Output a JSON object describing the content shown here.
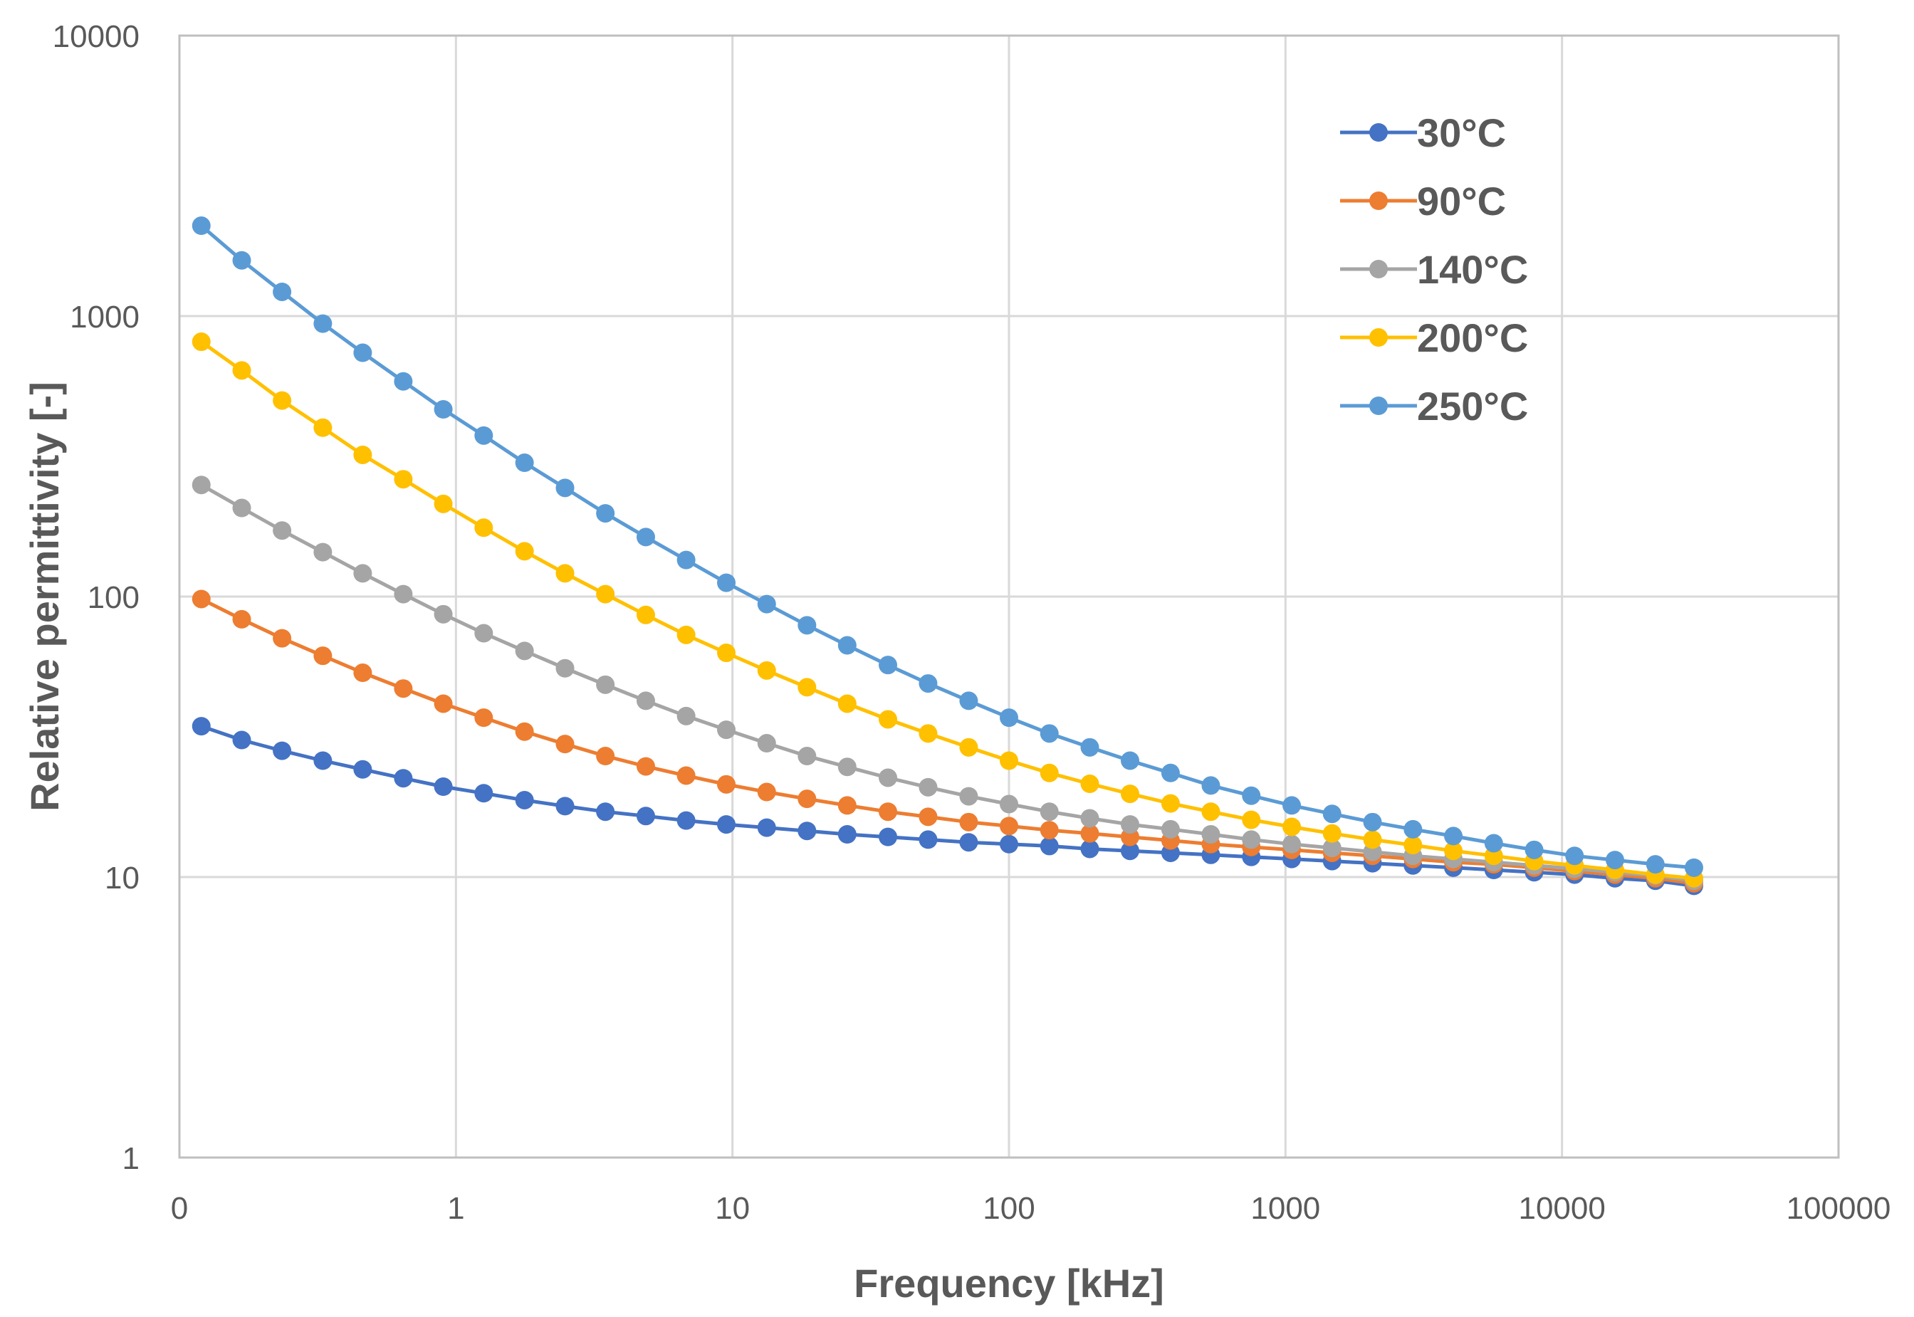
{
  "chart_data": {
    "type": "line",
    "title": "",
    "xlabel": "Frequency [kHz]",
    "ylabel": "Relative permittivity [-]",
    "xscale": "log",
    "yscale": "log",
    "xlim": [
      0.1,
      100000
    ],
    "ylim": [
      1,
      10000
    ],
    "x_tick_labels": [
      "0",
      "1",
      "10",
      "100",
      "1000",
      "10000",
      "100000"
    ],
    "y_tick_labels": [
      "1",
      "10",
      "100",
      "1000",
      "10000"
    ],
    "grid": true,
    "legend_position": "top-right",
    "x": [
      0.12,
      0.168,
      0.235,
      0.33,
      0.46,
      0.645,
      0.9,
      1.26,
      1.77,
      2.48,
      3.47,
      4.86,
      6.8,
      9.5,
      13.3,
      18.6,
      26,
      36.5,
      51,
      71.5,
      100,
      140,
      196,
      274,
      384,
      537,
      752,
      1053,
      1474,
      2064,
      2890,
      4046,
      5664,
      7930,
      11100,
      15540,
      21760,
      30000
    ],
    "series": [
      {
        "name": "30°C",
        "color": "#4472C4",
        "values": [
          34.5,
          30.8,
          28.2,
          26.0,
          24.2,
          22.5,
          21.0,
          19.9,
          18.8,
          17.9,
          17.1,
          16.5,
          15.9,
          15.4,
          15.0,
          14.6,
          14.2,
          13.9,
          13.6,
          13.3,
          13.1,
          12.9,
          12.6,
          12.4,
          12.2,
          12.0,
          11.8,
          11.6,
          11.4,
          11.2,
          11.0,
          10.8,
          10.6,
          10.4,
          10.2,
          9.9,
          9.7,
          9.3
        ]
      },
      {
        "name": "90°C",
        "color": "#ED7D31",
        "values": [
          98,
          83,
          71,
          61.5,
          53.5,
          47,
          41.5,
          37,
          33,
          29.8,
          27,
          24.8,
          23,
          21.4,
          20.1,
          19,
          18,
          17.1,
          16.4,
          15.7,
          15.2,
          14.7,
          14.3,
          13.9,
          13.5,
          13.1,
          12.8,
          12.5,
          12.2,
          11.9,
          11.6,
          11.3,
          11.1,
          10.8,
          10.5,
          10.2,
          9.9,
          9.5
        ]
      },
      {
        "name": "140°C",
        "color": "#A5A5A5",
        "values": [
          250,
          207,
          172,
          144,
          121,
          102,
          86.5,
          74,
          64,
          55.5,
          48.5,
          42.5,
          37.5,
          33.5,
          30,
          27,
          24.7,
          22.6,
          20.9,
          19.4,
          18.2,
          17.1,
          16.2,
          15.4,
          14.8,
          14.2,
          13.6,
          13.1,
          12.7,
          12.3,
          11.9,
          11.6,
          11.3,
          11.0,
          10.7,
          10.4,
          10.1,
          9.7
        ]
      },
      {
        "name": "200°C",
        "color": "#FFC000",
        "values": [
          810,
          640,
          500,
          400,
          320,
          262,
          214,
          176,
          145,
          121,
          102,
          86,
          73,
          63,
          54.5,
          47.5,
          41.5,
          36.5,
          32.5,
          29,
          26,
          23.5,
          21.5,
          19.8,
          18.3,
          17.1,
          16.0,
          15.1,
          14.3,
          13.6,
          13.0,
          12.4,
          11.9,
          11.4,
          11.0,
          10.6,
          10.2,
          9.9
        ]
      },
      {
        "name": "250°C",
        "color": "#5B9BD5",
        "values": [
          2100,
          1580,
          1220,
          940,
          740,
          585,
          465,
          375,
          300,
          244,
          198,
          163,
          135,
          112,
          94,
          79,
          67,
          57,
          49,
          42.5,
          37,
          32.5,
          29,
          26,
          23.5,
          21.2,
          19.5,
          18,
          16.8,
          15.7,
          14.8,
          14,
          13.2,
          12.5,
          11.9,
          11.5,
          11.1,
          10.8
        ]
      }
    ]
  }
}
